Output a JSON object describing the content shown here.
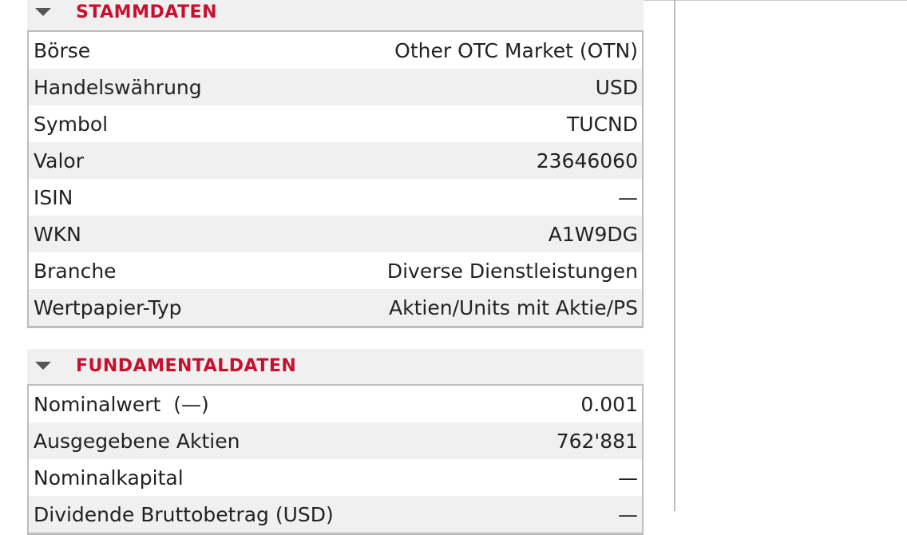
{
  "sections": [
    {
      "title": "STAMMDATEN",
      "rows": [
        {
          "label": "Börse",
          "value": "Other OTC Market (OTN)"
        },
        {
          "label": "Handelswährung",
          "value": "USD"
        },
        {
          "label": "Symbol",
          "value": "TUCND"
        },
        {
          "label": "Valor",
          "value": "23646060"
        },
        {
          "label": "ISIN",
          "value": "—"
        },
        {
          "label": "WKN",
          "value": "A1W9DG"
        },
        {
          "label": "Branche",
          "value": "Diverse Dienstleistungen"
        },
        {
          "label": "Wertpapier-Typ",
          "value": "Aktien/Units mit Aktie/PS"
        }
      ]
    },
    {
      "title": "FUNDAMENTALDATEN",
      "rows": [
        {
          "label": "Nominalwert  (—)",
          "value": "0.001"
        },
        {
          "label": "Ausgegebene Aktien",
          "value": "762'881"
        },
        {
          "label": "Nominalkapital",
          "value": "—"
        },
        {
          "label": "Dividende Bruttobetrag (USD)",
          "value": "—"
        }
      ]
    }
  ]
}
